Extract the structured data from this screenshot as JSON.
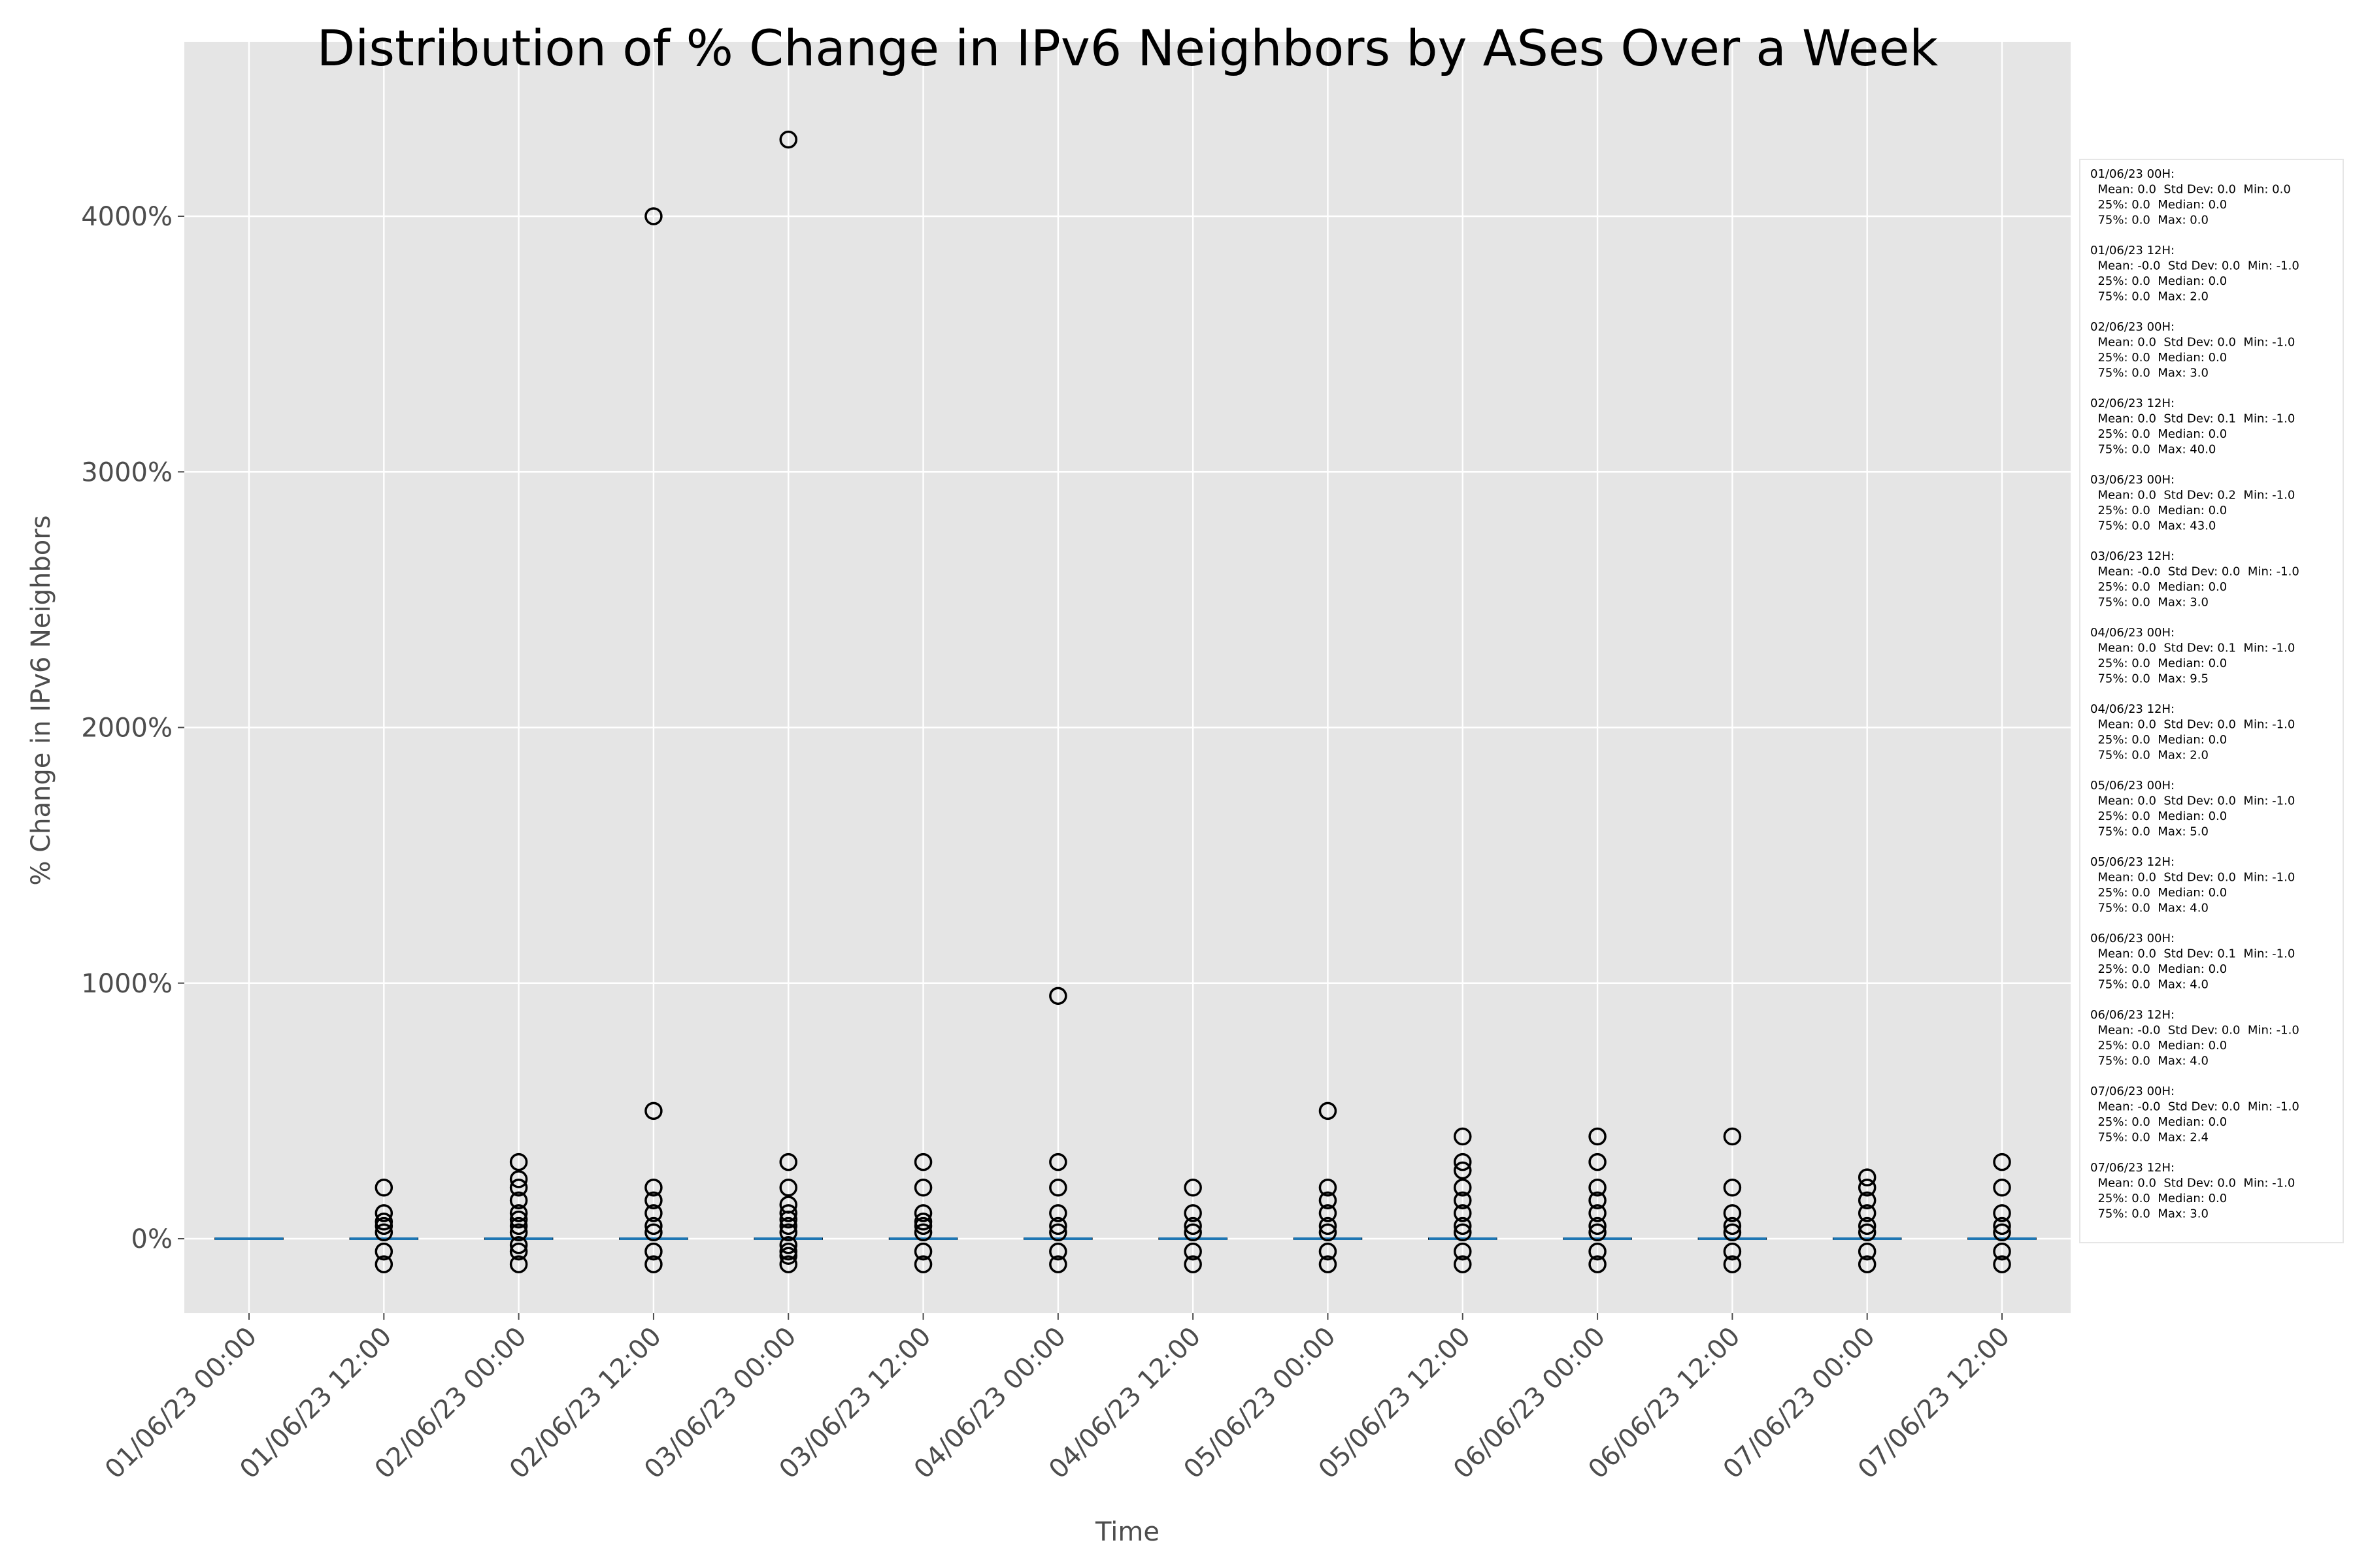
{
  "chart_data": {
    "type": "box",
    "title": "Distribution of % Change in IPv6 Neighbors by ASes Over a Week",
    "xlabel": "Time",
    "ylabel": "% Change in IPv6 Neighbors",
    "ylim": [
      -300,
      4500
    ],
    "yticks": [
      {
        "value": 0,
        "label": "0%"
      },
      {
        "value": 1000,
        "label": "1000%"
      },
      {
        "value": 2000,
        "label": "2000%"
      },
      {
        "value": 3000,
        "label": "3000%"
      },
      {
        "value": 4000,
        "label": "4000%"
      }
    ],
    "grid": true,
    "legend_placement": "right",
    "colors": {
      "plot_background": "#e5e5e5",
      "grid": "#ffffff",
      "median": "#1f77b4",
      "box": "#000000",
      "flier": "#000000"
    },
    "boxes": [
      {
        "label": "01/06/23 00:00",
        "q1": 0,
        "median": 0,
        "q3": 0,
        "whisker_low": 0,
        "whisker_high": 0,
        "fliers": []
      },
      {
        "label": "01/06/23 12:00",
        "q1": 0,
        "median": 0,
        "q3": 0,
        "whisker_low": 0,
        "whisker_high": 0,
        "fliers": [
          -100,
          -50,
          25,
          50,
          67,
          100,
          200
        ]
      },
      {
        "label": "02/06/23 00:00",
        "q1": 0,
        "median": 0,
        "q3": 0,
        "whisker_low": 0,
        "whisker_high": 0,
        "fliers": [
          -100,
          -50,
          -25,
          25,
          50,
          75,
          100,
          150,
          200,
          233,
          300
        ]
      },
      {
        "label": "02/06/23 12:00",
        "q1": 0,
        "median": 0,
        "q3": 0,
        "whisker_low": 0,
        "whisker_high": 0,
        "fliers": [
          -100,
          -50,
          25,
          50,
          100,
          150,
          200,
          500,
          4000
        ]
      },
      {
        "label": "03/06/23 00:00",
        "q1": 0,
        "median": 0,
        "q3": 0,
        "whisker_low": 0,
        "whisker_high": 0,
        "fliers": [
          -100,
          -67,
          -50,
          -25,
          25,
          50,
          75,
          100,
          133,
          200,
          300,
          4300
        ]
      },
      {
        "label": "03/06/23 12:00",
        "q1": 0,
        "median": 0,
        "q3": 0,
        "whisker_low": 0,
        "whisker_high": 0,
        "fliers": [
          -100,
          -50,
          25,
          50,
          67,
          100,
          200,
          300
        ]
      },
      {
        "label": "04/06/23 00:00",
        "q1": 0,
        "median": 0,
        "q3": 0,
        "whisker_low": 0,
        "whisker_high": 0,
        "fliers": [
          -100,
          -50,
          25,
          50,
          100,
          200,
          300,
          950
        ]
      },
      {
        "label": "04/06/23 12:00",
        "q1": 0,
        "median": 0,
        "q3": 0,
        "whisker_low": 0,
        "whisker_high": 0,
        "fliers": [
          -100,
          -50,
          25,
          50,
          100,
          200
        ]
      },
      {
        "label": "05/06/23 00:00",
        "q1": 0,
        "median": 0,
        "q3": 0,
        "whisker_low": 0,
        "whisker_high": 0,
        "fliers": [
          -100,
          -50,
          25,
          50,
          100,
          150,
          200,
          500
        ]
      },
      {
        "label": "05/06/23 12:00",
        "q1": 0,
        "median": 0,
        "q3": 0,
        "whisker_low": 0,
        "whisker_high": 0,
        "fliers": [
          -100,
          -50,
          25,
          50,
          100,
          150,
          200,
          267,
          300,
          400
        ]
      },
      {
        "label": "06/06/23 00:00",
        "q1": 0,
        "median": 0,
        "q3": 0,
        "whisker_low": 0,
        "whisker_high": 0,
        "fliers": [
          -100,
          -50,
          25,
          50,
          100,
          150,
          200,
          300,
          400
        ]
      },
      {
        "label": "06/06/23 12:00",
        "q1": 0,
        "median": 0,
        "q3": 0,
        "whisker_low": 0,
        "whisker_high": 0,
        "fliers": [
          -100,
          -50,
          25,
          50,
          100,
          200,
          400
        ]
      },
      {
        "label": "07/06/23 00:00",
        "q1": 0,
        "median": 0,
        "q3": 0,
        "whisker_low": 0,
        "whisker_high": 0,
        "fliers": [
          -100,
          -50,
          25,
          50,
          100,
          150,
          200,
          240
        ]
      },
      {
        "label": "07/06/23 12:00",
        "q1": 0,
        "median": 0,
        "q3": 0,
        "whisker_low": 0,
        "whisker_high": 0,
        "fliers": [
          -100,
          -50,
          25,
          50,
          100,
          200,
          300
        ]
      }
    ],
    "stats_legend": [
      {
        "lines": [
          "01/06/23 00H:",
          "  Mean: 0.0  Std Dev: 0.0  Min: 0.0",
          "  25%: 0.0  Median: 0.0",
          "  75%: 0.0  Max: 0.0"
        ]
      },
      {
        "lines": [
          "01/06/23 12H:",
          "  Mean: -0.0  Std Dev: 0.0  Min: -1.0",
          "  25%: 0.0  Median: 0.0",
          "  75%: 0.0  Max: 2.0"
        ]
      },
      {
        "lines": [
          "02/06/23 00H:",
          "  Mean: 0.0  Std Dev: 0.0  Min: -1.0",
          "  25%: 0.0  Median: 0.0",
          "  75%: 0.0  Max: 3.0"
        ]
      },
      {
        "lines": [
          "02/06/23 12H:",
          "  Mean: 0.0  Std Dev: 0.1  Min: -1.0",
          "  25%: 0.0  Median: 0.0",
          "  75%: 0.0  Max: 40.0"
        ]
      },
      {
        "lines": [
          "03/06/23 00H:",
          "  Mean: 0.0  Std Dev: 0.2  Min: -1.0",
          "  25%: 0.0  Median: 0.0",
          "  75%: 0.0  Max: 43.0"
        ]
      },
      {
        "lines": [
          "03/06/23 12H:",
          "  Mean: -0.0  Std Dev: 0.0  Min: -1.0",
          "  25%: 0.0  Median: 0.0",
          "  75%: 0.0  Max: 3.0"
        ]
      },
      {
        "lines": [
          "04/06/23 00H:",
          "  Mean: 0.0  Std Dev: 0.1  Min: -1.0",
          "  25%: 0.0  Median: 0.0",
          "  75%: 0.0  Max: 9.5"
        ]
      },
      {
        "lines": [
          "04/06/23 12H:",
          "  Mean: 0.0  Std Dev: 0.0  Min: -1.0",
          "  25%: 0.0  Median: 0.0",
          "  75%: 0.0  Max: 2.0"
        ]
      },
      {
        "lines": [
          "05/06/23 00H:",
          "  Mean: 0.0  Std Dev: 0.0  Min: -1.0",
          "  25%: 0.0  Median: 0.0",
          "  75%: 0.0  Max: 5.0"
        ]
      },
      {
        "lines": [
          "05/06/23 12H:",
          "  Mean: 0.0  Std Dev: 0.0  Min: -1.0",
          "  25%: 0.0  Median: 0.0",
          "  75%: 0.0  Max: 4.0"
        ]
      },
      {
        "lines": [
          "06/06/23 00H:",
          "  Mean: 0.0  Std Dev: 0.1  Min: -1.0",
          "  25%: 0.0  Median: 0.0",
          "  75%: 0.0  Max: 4.0"
        ]
      },
      {
        "lines": [
          "06/06/23 12H:",
          "  Mean: -0.0  Std Dev: 0.0  Min: -1.0",
          "  25%: 0.0  Median: 0.0",
          "  75%: 0.0  Max: 4.0"
        ]
      },
      {
        "lines": [
          "07/06/23 00H:",
          "  Mean: -0.0  Std Dev: 0.0  Min: -1.0",
          "  25%: 0.0  Median: 0.0",
          "  75%: 0.0  Max: 2.4"
        ]
      },
      {
        "lines": [
          "07/06/23 12H:",
          "  Mean: 0.0  Std Dev: 0.0  Min: -1.0",
          "  25%: 0.0  Median: 0.0",
          "  75%: 0.0  Max: 3.0"
        ]
      }
    ]
  }
}
